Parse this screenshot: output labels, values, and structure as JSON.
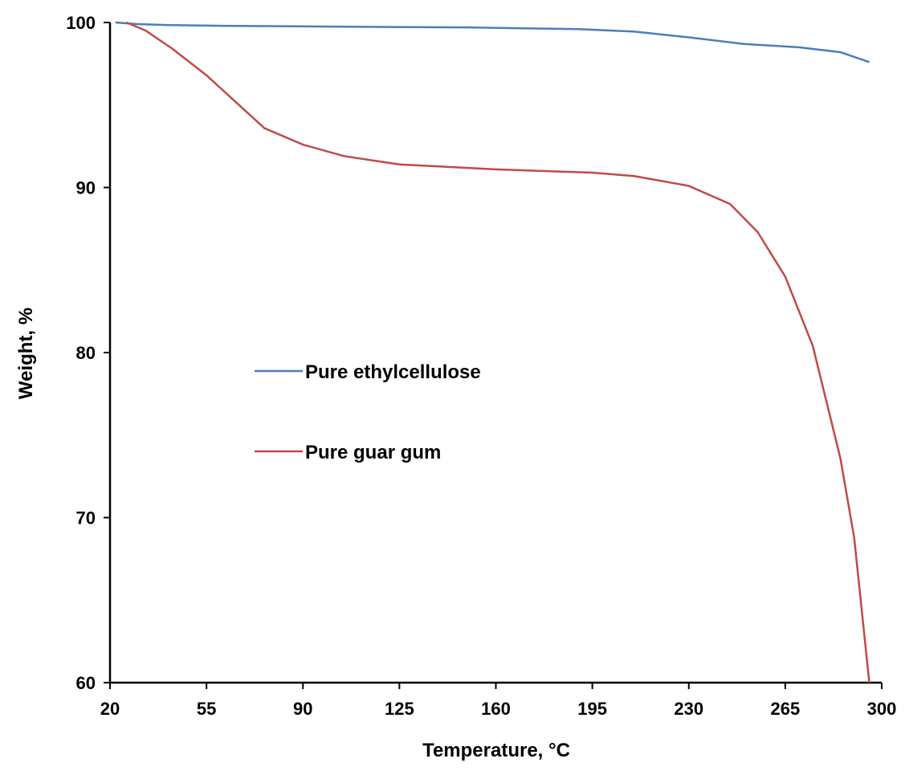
{
  "chart_data": {
    "type": "line",
    "xlabel": "Temperature, °C",
    "ylabel": "Weight, %",
    "xlim": [
      20,
      300
    ],
    "xticks": [
      20,
      55,
      90,
      125,
      160,
      195,
      230,
      265,
      300
    ],
    "ylim": [
      60,
      100
    ],
    "yticks": [
      60,
      70,
      80,
      90,
      100
    ],
    "grid": false,
    "legend": "center-left",
    "series": [
      {
        "name": "Pure ethylcellulose",
        "color": "#4a7ebb",
        "x": [
          22,
          30,
          40,
          60,
          100,
          150,
          190,
          210,
          230,
          250,
          270,
          285,
          295.5
        ],
        "values": [
          100,
          99.9,
          99.85,
          99.8,
          99.75,
          99.7,
          99.6,
          99.45,
          99.1,
          98.7,
          98.5,
          98.2,
          97.6
        ]
      },
      {
        "name": "Pure guar gum",
        "color": "#be4b48",
        "x": [
          26,
          33,
          42.7,
          55,
          76,
          90,
          105,
          125,
          160,
          195,
          210,
          230,
          245,
          255,
          265,
          275,
          285,
          290,
          295.5
        ],
        "values": [
          100,
          99.5,
          98.4,
          96.8,
          93.6,
          92.6,
          91.9,
          91.4,
          91.1,
          90.9,
          90.7,
          90.1,
          89.0,
          87.3,
          84.6,
          80.4,
          73.6,
          68.8,
          60
        ]
      }
    ]
  }
}
